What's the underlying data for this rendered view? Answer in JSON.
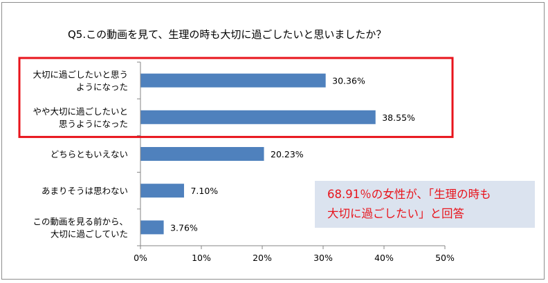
{
  "chart_data": {
    "type": "bar",
    "orientation": "horizontal",
    "title": "Q5.この動画を見て、生理の時も大切に過ごしたいと思いましたか？",
    "categories": [
      [
        "大切に過ごしたいと思う",
        "ようになった"
      ],
      [
        "やや大切に過ごしたいと",
        "思うようになった"
      ],
      [
        "どちらともいえない"
      ],
      [
        "あまりそうは思わない"
      ],
      [
        "この動画を見る前から、",
        "大切に過ごしていた"
      ]
    ],
    "values": [
      30.36,
      38.55,
      20.23,
      7.1,
      3.76
    ],
    "value_labels": [
      "30.36%",
      "38.55%",
      "20.23%",
      "7.10%",
      "3.76%"
    ],
    "xlim": [
      0,
      50
    ],
    "xticks": [
      "0%",
      "10%",
      "20%",
      "30%",
      "40%",
      "50%"
    ],
    "grid": false,
    "bar_color": "#4f81bd",
    "highlight_color": "#e8141c",
    "highlighted_categories": [
      0,
      1
    ]
  },
  "callout": {
    "lines": [
      "68.91％の女性が、「生理の時も",
      "大切に過ごしたい」と回答"
    ],
    "text_color": "#e8141c",
    "background": "#dbe3ef"
  }
}
